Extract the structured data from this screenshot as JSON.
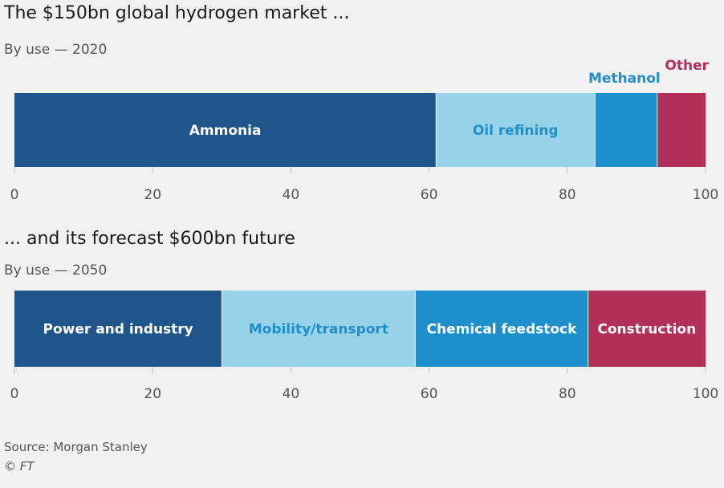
{
  "chart_data": [
    {
      "type": "bar",
      "title": "The $150bn global hydrogen market ...",
      "subtitle": "By use — 2020",
      "xlim": [
        0,
        100
      ],
      "ticks": [
        "0",
        "20",
        "40",
        "60",
        "80",
        "100"
      ],
      "tick_values": [
        0,
        20,
        40,
        60,
        80,
        100
      ],
      "series": [
        {
          "name": "Ammonia",
          "values": [
            61
          ]
        },
        {
          "name": "Oil refining",
          "values": [
            23
          ]
        },
        {
          "name": "Methanol",
          "values": [
            9
          ]
        },
        {
          "name": "Other",
          "values": [
            7
          ]
        }
      ],
      "colors": [
        "#1f558b",
        "#98d2e9",
        "#1f8fcb",
        "#b0305a"
      ],
      "label_colors": [
        "#ffffff",
        "#1f8fcb",
        "#1f8fcb",
        "#b0305a"
      ],
      "label_position": [
        "inside",
        "inside",
        "above",
        "above"
      ]
    },
    {
      "type": "bar",
      "title": "... and its forecast $600bn future",
      "subtitle": "By use — 2050",
      "xlim": [
        0,
        100
      ],
      "ticks": [
        "0",
        "20",
        "40",
        "60",
        "80",
        "100"
      ],
      "tick_values": [
        0,
        20,
        40,
        60,
        80,
        100
      ],
      "series": [
        {
          "name": "Power and industry",
          "values": [
            30
          ]
        },
        {
          "name": "Mobility/transport",
          "values": [
            28
          ]
        },
        {
          "name": "Chemical feedstock",
          "values": [
            25
          ]
        },
        {
          "name": "Construction",
          "values": [
            17
          ]
        }
      ],
      "colors": [
        "#1f558b",
        "#98d2e9",
        "#1f8fcb",
        "#b0305a"
      ],
      "label_colors": [
        "#ffffff",
        "#1f8fcb",
        "#ffffff",
        "#ffffff"
      ],
      "label_position": [
        "inside",
        "inside",
        "inside",
        "inside"
      ]
    }
  ],
  "source": "Source: Morgan Stanley",
  "copyright": "© FT"
}
